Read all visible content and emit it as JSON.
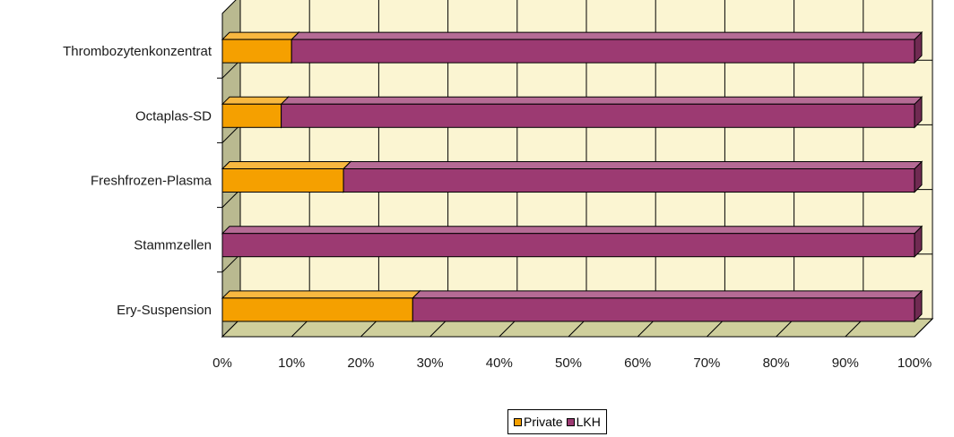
{
  "chart_data": {
    "type": "bar",
    "orientation": "horizontal",
    "stacked": "percent",
    "three_d": true,
    "categories": [
      "Thrombozytenkonzentrat",
      "Octaplas-SD",
      "Freshfrozen-Plasma",
      "Stammzellen",
      "Ery-Suspension"
    ],
    "series": [
      {
        "name": "Private",
        "color": "#f5a000",
        "values": [
          10,
          8.5,
          17.5,
          0,
          27.5
        ]
      },
      {
        "name": "LKH",
        "color": "#9c3a72",
        "values": [
          90,
          91.5,
          82.5,
          100,
          72.5
        ]
      }
    ],
    "x_ticks": [
      "0%",
      "10%",
      "20%",
      "30%",
      "40%",
      "50%",
      "60%",
      "70%",
      "80%",
      "90%",
      "100%"
    ],
    "xlim": [
      0,
      100
    ],
    "grid": true,
    "legend_position": "bottom",
    "colors": {
      "wall": "#fbf5d2",
      "floor": "#cfcf9c",
      "side_wall": "#b9b990"
    }
  }
}
